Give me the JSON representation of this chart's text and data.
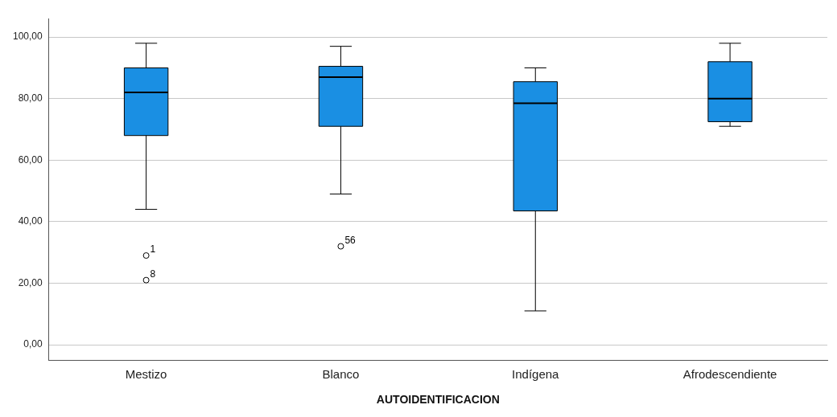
{
  "chart_data": {
    "type": "box",
    "xlabel": "AUTOIDENTIFICACION",
    "categories": [
      "Mestizo",
      "Blanco",
      "Indígena",
      "Afrodescendiente"
    ],
    "color": "#1a8fe3",
    "boxes": [
      {
        "low": 44,
        "q1": 68,
        "median": 82,
        "q3": 90,
        "high": 98,
        "outliers": [
          29,
          21
        ]
      },
      {
        "low": 49,
        "q1": 71,
        "median": 87,
        "q3": 90.5,
        "high": 97,
        "outliers": [
          32
        ]
      },
      {
        "low": 11,
        "q1": 43.5,
        "median": 78.5,
        "q3": 85.5,
        "high": 90
      },
      {
        "low": 71,
        "q1": 72.5,
        "median": 80,
        "q3": 92,
        "high": 98
      }
    ],
    "ylim": [
      -5,
      106
    ],
    "yticks": [
      {
        "value": 0,
        "label": "0,00"
      },
      {
        "value": 20,
        "label": "20,00"
      },
      {
        "value": 40,
        "label": "40,00"
      },
      {
        "value": 60,
        "label": "60,00"
      },
      {
        "value": 80,
        "label": "80,00"
      },
      {
        "value": 100,
        "label": "100,00"
      }
    ],
    "grid": "y",
    "annotations": [
      "1",
      "8",
      "56"
    ]
  }
}
